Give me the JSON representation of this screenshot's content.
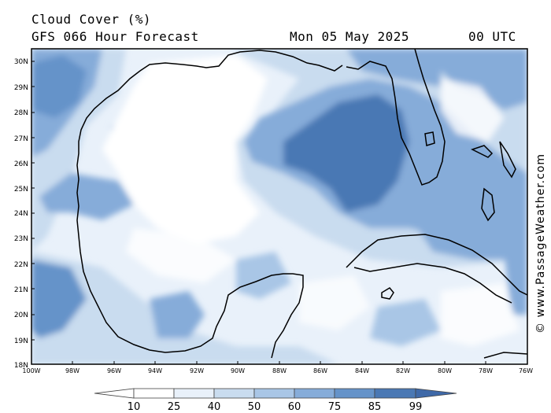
{
  "header": {
    "title": "Cloud Cover (%)",
    "subtitle": "GFS 066 Hour Forecast",
    "date": "Mon 05 May 2025",
    "time": "00 UTC"
  },
  "watermark": "© www.PassageWeather.com",
  "map": {
    "lat_labels": [
      "30N",
      "29N",
      "28N",
      "27N",
      "26N",
      "25N",
      "24N",
      "23N",
      "22N",
      "21N",
      "20N",
      "19N",
      "18N"
    ],
    "lon_labels": [
      "100W",
      "98W",
      "96W",
      "94W",
      "92W",
      "90W",
      "88W",
      "86W",
      "84W",
      "82W",
      "80W",
      "78W",
      "76W"
    ],
    "colors": {
      "land_outline": "#000000",
      "c10": "#ffffff",
      "c25": "#e9f1fa",
      "c40": "#c9dcef",
      "c50": "#a9c6e6",
      "c60": "#86acd9",
      "c75": "#6593c9",
      "c85": "#4a78b4",
      "c99": "#3f69a8"
    }
  },
  "colorbar": {
    "labels": [
      "10",
      "25",
      "40",
      "50",
      "60",
      "75",
      "85",
      "99"
    ],
    "colors": [
      "#ffffff",
      "#e9f1fa",
      "#c9dcef",
      "#a9c6e6",
      "#86acd9",
      "#6593c9",
      "#4a78b4",
      "#3f69a8"
    ]
  }
}
